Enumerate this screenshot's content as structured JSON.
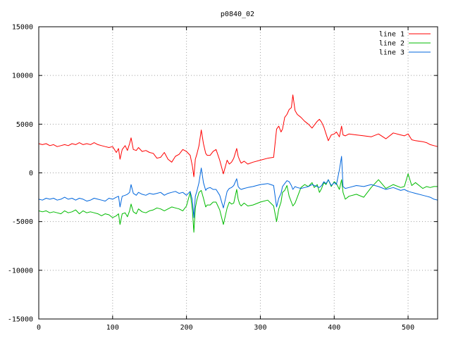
{
  "chart_data": {
    "type": "line",
    "title": "p0840_02",
    "xlim": [
      0,
      540
    ],
    "ylim": [
      -15000,
      15000
    ],
    "x_ticks": [
      0,
      100,
      200,
      300,
      400,
      500
    ],
    "y_ticks": [
      -15000,
      -10000,
      -5000,
      0,
      5000,
      10000,
      15000
    ],
    "grid": true,
    "legend_position": "top-right",
    "series": [
      {
        "name": "line 1",
        "color": "#ff0000",
        "x": [
          0,
          5,
          10,
          15,
          20,
          25,
          30,
          35,
          40,
          45,
          50,
          55,
          60,
          65,
          70,
          75,
          80,
          85,
          90,
          95,
          100,
          105,
          108,
          110,
          113,
          117,
          120,
          123,
          125,
          128,
          132,
          135,
          140,
          145,
          150,
          155,
          160,
          165,
          170,
          175,
          180,
          185,
          190,
          195,
          200,
          205,
          208,
          210,
          212,
          214,
          217,
          220,
          223,
          226,
          228,
          232,
          236,
          240,
          245,
          250,
          255,
          258,
          261,
          264,
          268,
          270,
          272,
          274,
          278,
          283,
          290,
          300,
          310,
          318,
          322,
          325,
          328,
          330,
          333,
          336,
          339,
          342,
          344,
          347,
          350,
          355,
          360,
          365,
          370,
          373,
          377,
          380,
          383,
          386,
          389,
          392,
          396,
          400,
          403,
          407,
          410,
          412,
          415,
          420,
          430,
          440,
          450,
          460,
          470,
          480,
          490,
          495,
          500,
          505,
          510,
          520,
          525,
          530,
          535,
          540
        ],
        "y": [
          3000,
          2900,
          3000,
          2800,
          2900,
          2700,
          2800,
          2900,
          2800,
          3000,
          2900,
          3100,
          2900,
          3000,
          2900,
          3100,
          2900,
          2800,
          2700,
          2600,
          2700,
          2100,
          2500,
          1400,
          2400,
          2800,
          2300,
          3000,
          3600,
          2400,
          2300,
          2600,
          2200,
          2300,
          2100,
          2000,
          1500,
          1600,
          2100,
          1400,
          1100,
          1700,
          1900,
          2400,
          2200,
          1800,
          700,
          -400,
          1400,
          1900,
          2800,
          4400,
          3000,
          2000,
          1800,
          1800,
          2200,
          2400,
          1300,
          -100,
          1300,
          900,
          1100,
          1500,
          2500,
          1700,
          1300,
          1000,
          1200,
          900,
          1100,
          1300,
          1500,
          1600,
          4500,
          4800,
          4200,
          4500,
          5700,
          6000,
          6500,
          6700,
          8000,
          6400,
          6000,
          5700,
          5300,
          5000,
          4600,
          4900,
          5300,
          5500,
          5200,
          4700,
          4000,
          3300,
          3900,
          4000,
          4200,
          3700,
          4800,
          3900,
          3800,
          4000,
          3900,
          3800,
          3700,
          4000,
          3500,
          4100,
          3900,
          3800,
          4000,
          3400,
          3300,
          3200,
          3100,
          2900,
          2800,
          2700
        ]
      },
      {
        "name": "line 2",
        "color": "#00bb00",
        "x": [
          0,
          5,
          10,
          15,
          20,
          25,
          30,
          35,
          40,
          45,
          50,
          55,
          60,
          65,
          70,
          75,
          80,
          85,
          90,
          95,
          100,
          105,
          108,
          110,
          113,
          117,
          120,
          123,
          125,
          128,
          132,
          135,
          140,
          145,
          150,
          155,
          160,
          165,
          170,
          175,
          180,
          185,
          190,
          195,
          200,
          205,
          208,
          210,
          212,
          214,
          217,
          220,
          223,
          226,
          228,
          232,
          236,
          240,
          245,
          250,
          255,
          258,
          261,
          264,
          268,
          270,
          272,
          274,
          278,
          283,
          290,
          300,
          310,
          318,
          322,
          325,
          328,
          330,
          333,
          336,
          339,
          342,
          344,
          347,
          350,
          355,
          360,
          365,
          370,
          373,
          377,
          380,
          383,
          386,
          389,
          392,
          396,
          400,
          403,
          407,
          410,
          412,
          415,
          420,
          430,
          440,
          450,
          460,
          470,
          480,
          490,
          495,
          500,
          505,
          510,
          520,
          525,
          530,
          535,
          540
        ],
        "y": [
          -3900,
          -4000,
          -3900,
          -4100,
          -4000,
          -4100,
          -4200,
          -3900,
          -4100,
          -4000,
          -3800,
          -4200,
          -3900,
          -4100,
          -4000,
          -4100,
          -4200,
          -4400,
          -4200,
          -4300,
          -4600,
          -4400,
          -4200,
          -5300,
          -4200,
          -4100,
          -4500,
          -3900,
          -3200,
          -4000,
          -4200,
          -3700,
          -4000,
          -4100,
          -3900,
          -3800,
          -3600,
          -3700,
          -3900,
          -3700,
          -3500,
          -3600,
          -3700,
          -3900,
          -3400,
          -2000,
          -3800,
          -6100,
          -3600,
          -2800,
          -2000,
          -1800,
          -2600,
          -3500,
          -3300,
          -3300,
          -3000,
          -3000,
          -3800,
          -5300,
          -3600,
          -3000,
          -3200,
          -3100,
          -1700,
          -2700,
          -3200,
          -3400,
          -3100,
          -3400,
          -3300,
          -3000,
          -2800,
          -3400,
          -5000,
          -3700,
          -3000,
          -2000,
          -1800,
          -1300,
          -2400,
          -3000,
          -3400,
          -3100,
          -2500,
          -1500,
          -1200,
          -1400,
          -1000,
          -1500,
          -1200,
          -2000,
          -1600,
          -1000,
          -1200,
          -700,
          -1400,
          -900,
          -1100,
          -1700,
          -700,
          -2000,
          -2700,
          -2400,
          -2200,
          -2500,
          -1500,
          -700,
          -1600,
          -1200,
          -1500,
          -1400,
          -100,
          -1300,
          -1000,
          -1600,
          -1400,
          -1500,
          -1400,
          -1400
        ]
      },
      {
        "name": "line 3",
        "color": "#0066dd",
        "x": [
          0,
          5,
          10,
          15,
          20,
          25,
          30,
          35,
          40,
          45,
          50,
          55,
          60,
          65,
          70,
          75,
          80,
          85,
          90,
          95,
          100,
          105,
          108,
          110,
          113,
          117,
          120,
          123,
          125,
          128,
          132,
          135,
          140,
          145,
          150,
          155,
          160,
          165,
          170,
          175,
          180,
          185,
          190,
          195,
          200,
          205,
          208,
          210,
          212,
          214,
          217,
          220,
          223,
          226,
          228,
          232,
          236,
          240,
          245,
          250,
          255,
          258,
          261,
          264,
          268,
          270,
          272,
          274,
          278,
          283,
          290,
          300,
          310,
          318,
          322,
          325,
          328,
          330,
          333,
          336,
          339,
          342,
          344,
          347,
          350,
          355,
          360,
          365,
          370,
          373,
          377,
          380,
          383,
          386,
          389,
          392,
          396,
          400,
          403,
          407,
          410,
          412,
          415,
          420,
          430,
          440,
          450,
          460,
          470,
          480,
          490,
          495,
          500,
          505,
          510,
          520,
          525,
          530,
          535,
          540
        ],
        "y": [
          -2700,
          -2800,
          -2600,
          -2700,
          -2600,
          -2800,
          -2700,
          -2500,
          -2700,
          -2600,
          -2800,
          -2600,
          -2700,
          -2900,
          -2800,
          -2600,
          -2700,
          -2800,
          -2900,
          -2600,
          -2700,
          -2500,
          -2400,
          -3500,
          -2400,
          -2300,
          -2200,
          -2000,
          -1200,
          -2100,
          -2300,
          -2000,
          -2200,
          -2300,
          -2100,
          -2200,
          -2100,
          -2000,
          -2300,
          -2100,
          -2000,
          -1900,
          -2100,
          -2000,
          -2300,
          -1900,
          -2800,
          -4600,
          -2400,
          -1900,
          -1000,
          500,
          -1000,
          -1800,
          -1600,
          -1500,
          -1700,
          -1700,
          -2300,
          -3600,
          -1900,
          -1600,
          -1500,
          -1300,
          -600,
          -1400,
          -1600,
          -1700,
          -1600,
          -1500,
          -1400,
          -1200,
          -1100,
          -1300,
          -3500,
          -2600,
          -2100,
          -1400,
          -1100,
          -800,
          -900,
          -1300,
          -1700,
          -1400,
          -1500,
          -1600,
          -1500,
          -1400,
          -1200,
          -1300,
          -1400,
          -1500,
          -1300,
          -900,
          -1100,
          -700,
          -1300,
          -1000,
          -1200,
          300,
          1700,
          -1400,
          -1600,
          -1500,
          -1300,
          -1400,
          -1200,
          -1400,
          -1700,
          -1500,
          -1800,
          -1700,
          -1900,
          -2000,
          -2100,
          -2300,
          -2400,
          -2500,
          -2700,
          -2800
        ]
      }
    ]
  }
}
